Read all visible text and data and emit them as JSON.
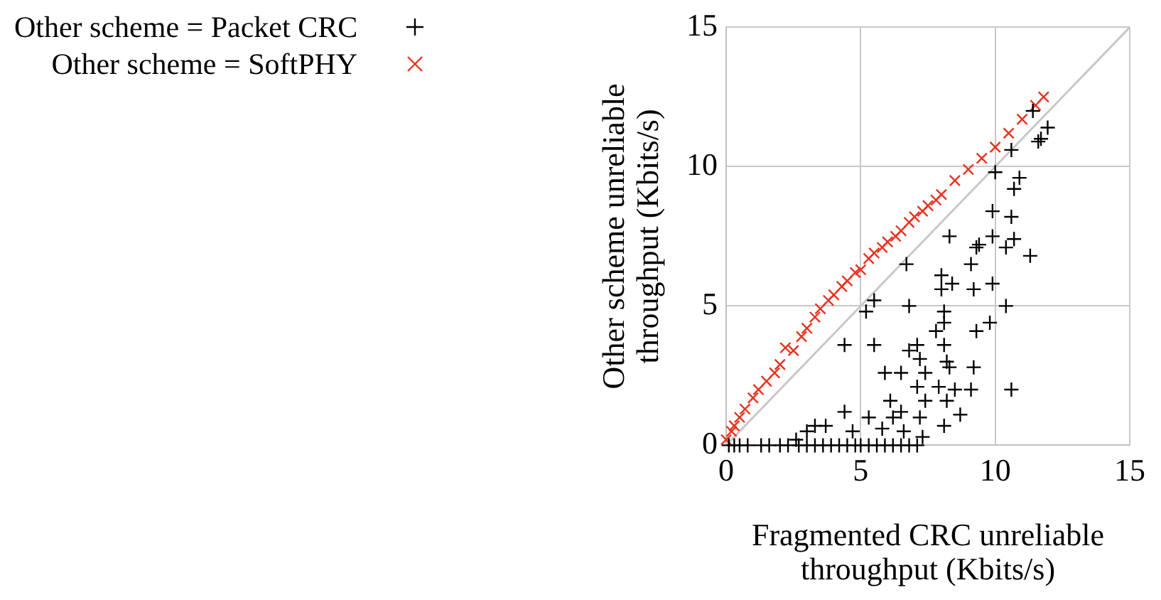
{
  "chart_data": {
    "type": "scatter",
    "xlabel": "Fragmented CRC unreliable throughput (Kbits/s)",
    "ylabel": "Other scheme unreliable throughput (Kbits/s)",
    "xlim": [
      0,
      15
    ],
    "ylim": [
      0,
      15
    ],
    "xticks": [
      0,
      5,
      10,
      15
    ],
    "yticks": [
      0,
      5,
      10,
      15
    ],
    "grid": true,
    "legend": "top left",
    "series": [
      {
        "name": "Other scheme = Packet CRC",
        "color": "#000000",
        "marker": "plus",
        "x": [
          0.1,
          0.3,
          0.5,
          0.8,
          1.3,
          1.6,
          2.0,
          2.3,
          2.7,
          3.0,
          3.3,
          3.6,
          3.9,
          4.2,
          4.5,
          4.8,
          5.0,
          5.3,
          5.6,
          5.9,
          6.2,
          6.5,
          6.8,
          7.1,
          2.6,
          7.3,
          6.6,
          5.8,
          4.7,
          3.0,
          3.7,
          3.3,
          8.1,
          7.2,
          6.2,
          5.3,
          8.7,
          6.5,
          4.4,
          8.2,
          7.4,
          6.1,
          10.6,
          9.1,
          8.5,
          7.9,
          7.1,
          7.4,
          6.5,
          5.9,
          9.2,
          8.3,
          8.2,
          7.2,
          8.1,
          7.1,
          6.8,
          5.5,
          4.4,
          7.8,
          9.3,
          9.8,
          8.1,
          8.1,
          5.2,
          10.4,
          6.8,
          5.5,
          9.9,
          9.2,
          8.0,
          8.4,
          8.0,
          6.7,
          9.1,
          11.3,
          10.4,
          9.3,
          9.4,
          10.7,
          9.9,
          8.3,
          10.6,
          9.9,
          10.7,
          10.9,
          10.0,
          10.6,
          11.6,
          11.7,
          11.95,
          11.4
        ],
        "values": [
          0,
          0,
          0,
          0,
          0,
          0,
          0,
          0,
          0,
          0,
          0,
          0,
          0,
          0,
          0,
          0,
          0,
          0,
          0,
          0,
          0,
          0,
          0,
          0,
          0.2,
          0.3,
          0.5,
          0.6,
          0.5,
          0.5,
          0.7,
          0.7,
          0.7,
          1.0,
          1.0,
          1.0,
          1.1,
          1.2,
          1.2,
          1.6,
          1.6,
          1.6,
          2.0,
          2.0,
          2.0,
          2.1,
          2.1,
          2.6,
          2.6,
          2.6,
          2.8,
          2.8,
          3.0,
          3.1,
          3.6,
          3.6,
          3.4,
          3.6,
          3.6,
          4.1,
          4.1,
          4.4,
          4.4,
          4.8,
          4.8,
          5.0,
          5.0,
          5.2,
          5.8,
          5.6,
          5.6,
          5.8,
          6.1,
          6.5,
          6.5,
          6.8,
          7.1,
          7.1,
          7.2,
          7.4,
          7.5,
          7.5,
          8.2,
          8.4,
          9.2,
          9.6,
          9.8,
          10.6,
          10.9,
          11.0,
          11.4,
          12.0
        ]
      },
      {
        "name": "Other scheme = SoftPHY",
        "color": "#e8321e",
        "marker": "cross",
        "x": [
          0,
          0.2,
          0.3,
          0.5,
          0.7,
          1,
          1.2,
          1.5,
          1.8,
          2,
          2.2,
          2.5,
          2.8,
          3,
          3.3,
          3.5,
          3.8,
          4,
          4.3,
          4.5,
          4.8,
          5,
          5.3,
          5.5,
          5.8,
          6,
          6.3,
          6.5,
          6.8,
          7,
          7.3,
          7.5,
          7.8,
          8,
          8.5,
          9,
          9.5,
          10,
          10.5,
          11,
          11.5,
          11.8
        ],
        "values": [
          0.2,
          0.5,
          0.7,
          1.0,
          1.3,
          1.7,
          2.0,
          2.3,
          2.6,
          2.9,
          3.5,
          3.4,
          3.9,
          4.2,
          4.6,
          4.9,
          5.2,
          5.4,
          5.7,
          5.9,
          6.2,
          6.3,
          6.7,
          6.9,
          7.1,
          7.3,
          7.5,
          7.7,
          8.0,
          8.2,
          8.4,
          8.6,
          8.8,
          9.0,
          9.5,
          9.9,
          10.3,
          10.7,
          11.2,
          11.7,
          12.2,
          12.5
        ]
      },
      {
        "type": "line",
        "color": "#c8c8c8",
        "marker": "none",
        "x": [
          0,
          15
        ],
        "values": [
          0,
          15
        ]
      }
    ]
  }
}
